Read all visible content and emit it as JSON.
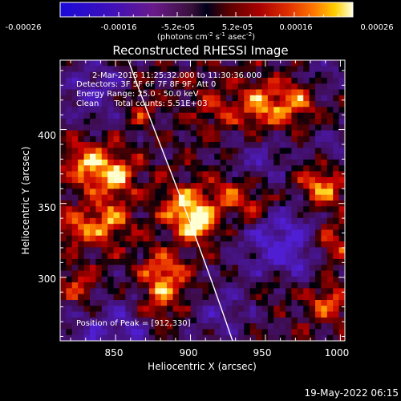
{
  "colorbar": {
    "tick_labels": [
      "-0.00026",
      "-0.00016",
      "-5.2e-05",
      "5.2e-05",
      "0.00016",
      "0.00026"
    ],
    "units_label": "(photons cm",
    "units_exp1": "-2",
    "units_mid": " s",
    "units_exp2": "-1",
    "units_end": " asec",
    "units_exp3": "-2",
    "units_close": ")",
    "colors": [
      "#1a0ad8",
      "#3a10c0",
      "#5a189a",
      "#7a1c6c",
      "#00001a",
      "#5e0000",
      "#a80000",
      "#e03000",
      "#ff7a00",
      "#ffd000",
      "#ffffe0"
    ]
  },
  "title": "Reconstructed RHESSI Image",
  "info": {
    "line1": "2-Mar-2015 11:25:32.000 to 11:30:36.000",
    "line2": "Detectors: 3F 5F 6F 7F 8F 9F, Att 0",
    "line3": "Energy Range: 25.0 - 50.0 keV",
    "line4": "Clean      Total counts: 5.51E+03"
  },
  "peak_label": "Position of Peak = [912,330]",
  "axes": {
    "xlabel": "Heliocentric X (arcsec)",
    "ylabel": "Heliocentric Y (arcsec)",
    "xticks": [
      "850",
      "900",
      "950",
      "1000"
    ],
    "yticks": [
      "300",
      "350",
      "400"
    ]
  },
  "footer_date": "19-May-2022 06:15",
  "image": {
    "peak_position_arcsec": [
      912,
      330
    ],
    "x_range_arcsec": [
      813,
      1003
    ],
    "y_range_arcsec": [
      257,
      447
    ],
    "limb_curve_color": "#ffffff"
  }
}
